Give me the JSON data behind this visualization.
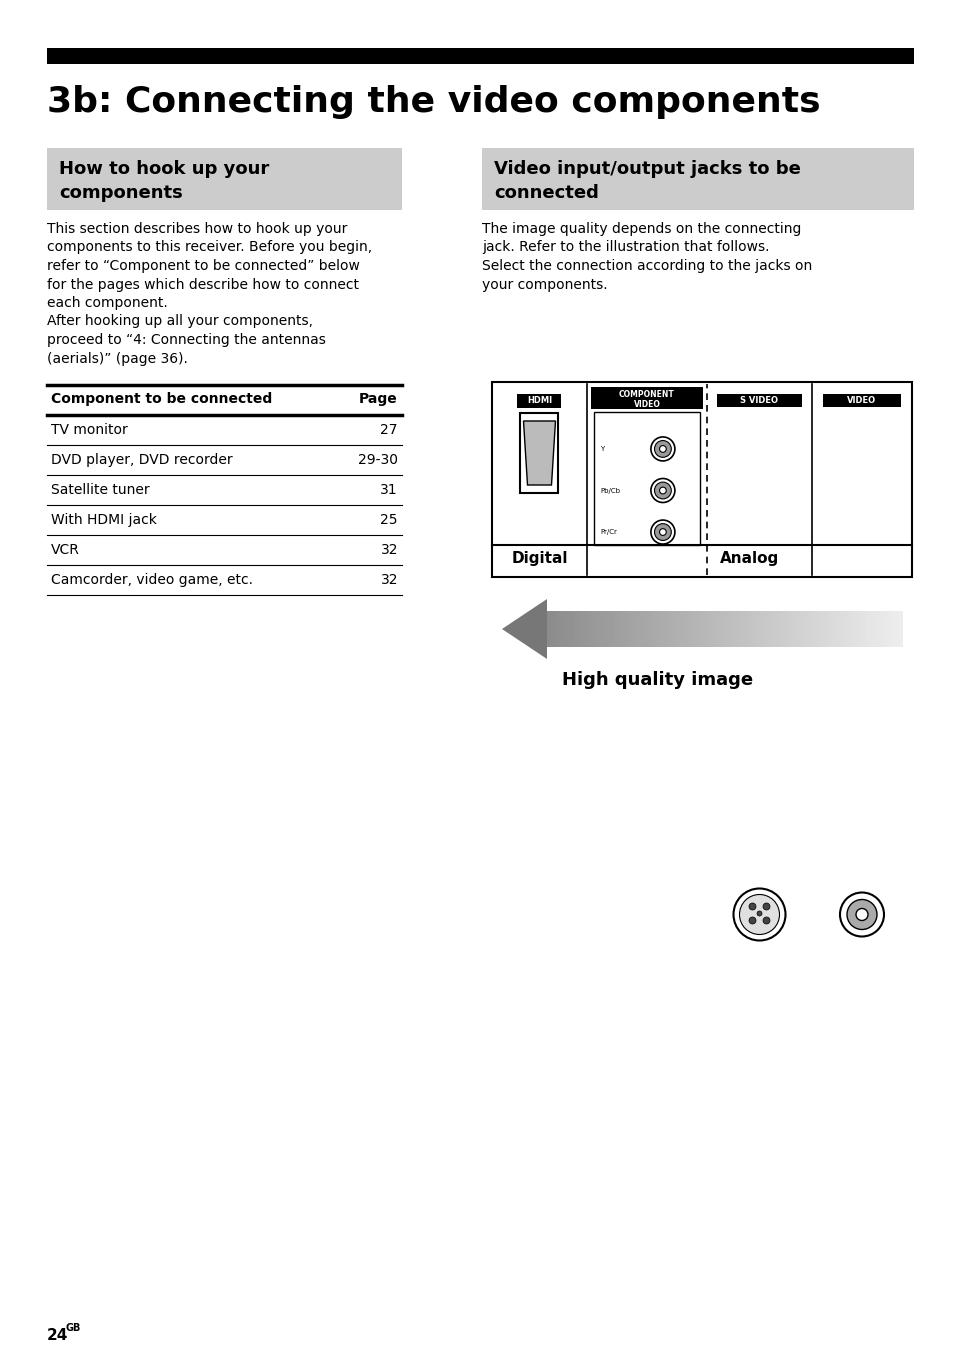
{
  "title": "3b: Connecting the video components",
  "left_box_title": "How to hook up your\ncomponents",
  "right_box_title": "Video input/output jacks to be\nconnected",
  "left_body_text_lines": [
    "This section describes how to hook up your",
    "components to this receiver. Before you begin,",
    "refer to “Component to be connected” below",
    "for the pages which describe how to connect",
    "each component.",
    "After hooking up all your components,",
    "proceed to “4: Connecting the antennas",
    "(aerials)” (page 36)."
  ],
  "right_body_text_lines": [
    "The image quality depends on the connecting",
    "jack. Refer to the illustration that follows.",
    "Select the connection according to the jacks on",
    "your components."
  ],
  "table_header": [
    "Component to be connected",
    "Page"
  ],
  "table_rows": [
    [
      "TV monitor",
      "27"
    ],
    [
      "DVD player, DVD recorder",
      "29-30"
    ],
    [
      "Satellite tuner",
      "31"
    ],
    [
      "With HDMI jack",
      "25"
    ],
    [
      "VCR",
      "32"
    ],
    [
      "Camcorder, video game, etc.",
      "32"
    ]
  ],
  "footer_text": "24",
  "footer_superscript": "GB",
  "high_quality_text": "High quality image",
  "digital_label": "Digital",
  "analog_label": "Analog",
  "bg_color": "#ffffff",
  "box_bg_color": "#cccccc",
  "header_bar_color": "#000000",
  "text_color": "#000000"
}
